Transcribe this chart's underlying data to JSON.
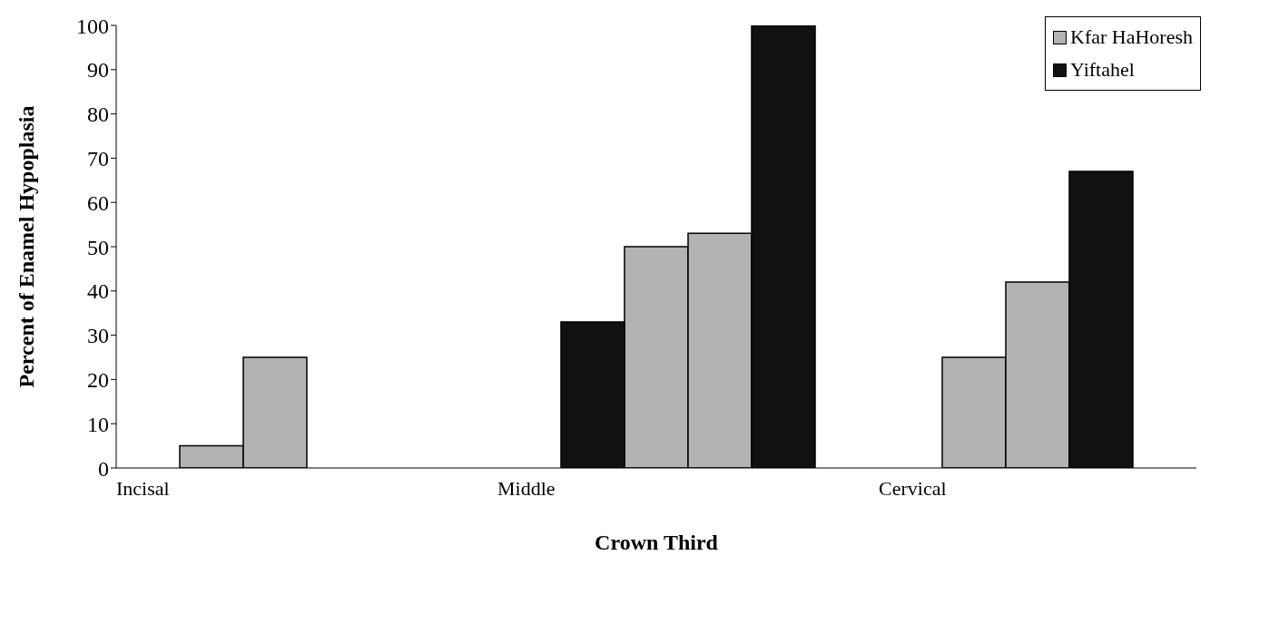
{
  "chart_data": {
    "type": "bar",
    "xlabel": "Crown Third",
    "ylabel": "Percent of Enamel Hypoplasia",
    "categories": [
      "Incisal",
      null,
      null,
      null,
      null,
      null,
      "Middle",
      null,
      null,
      null,
      null,
      null,
      "Cervical",
      null,
      null,
      null,
      null
    ],
    "series": [
      {
        "name": "Kfar HaHoresh",
        "color": "#b3b3b3",
        "values": [
          null,
          5,
          25,
          null,
          null,
          null,
          null,
          null,
          50,
          53,
          null,
          null,
          null,
          25,
          42,
          null,
          null
        ]
      },
      {
        "name": "Yiftahel",
        "color": "#111111",
        "values": [
          null,
          null,
          null,
          null,
          null,
          null,
          null,
          33,
          null,
          null,
          100,
          null,
          null,
          null,
          null,
          67,
          null
        ]
      }
    ],
    "stacked": true,
    "ylim": [
      0,
      100
    ],
    "yticks": [
      0,
      10,
      20,
      30,
      40,
      50,
      60,
      70,
      80,
      90,
      100
    ],
    "grid": false,
    "legend": "top right"
  }
}
